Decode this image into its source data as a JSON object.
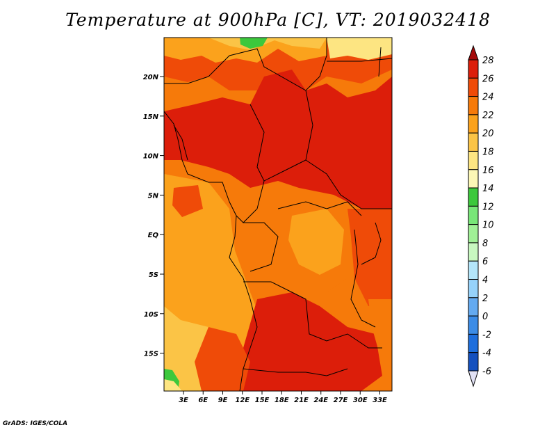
{
  "title": "Temperature at 900hPa [C], VT: 2019032418",
  "credit": "GrADS: IGES/COLA",
  "map": {
    "lat_labels": [
      "20N",
      "15N",
      "10N",
      "5N",
      "EQ",
      "5S",
      "10S",
      "15S"
    ],
    "lat_values": [
      20,
      15,
      10,
      5,
      0,
      -5,
      -10,
      -15
    ],
    "lon_labels": [
      "3E",
      "6E",
      "9E",
      "12E",
      "15E",
      "18E",
      "21E",
      "24E",
      "27E",
      "30E",
      "33E"
    ],
    "lon_values": [
      3,
      6,
      9,
      12,
      15,
      18,
      21,
      24,
      27,
      30,
      33
    ]
  },
  "colorbar": {
    "labels": [
      "28",
      "26",
      "24",
      "22",
      "20",
      "18",
      "16",
      "14",
      "12",
      "10",
      "8",
      "6",
      "4",
      "2",
      "0",
      "-2",
      "-4",
      "-6"
    ],
    "levels": [
      28,
      26,
      24,
      22,
      20,
      18,
      16,
      14,
      12,
      10,
      8,
      6,
      4,
      2,
      0,
      -2,
      -4,
      -6
    ],
    "colors": [
      "#a50a0a",
      "#dc1e0a",
      "#ef4b08",
      "#f67a0a",
      "#fba21c",
      "#fbc446",
      "#fde582",
      "#fcf7b6",
      "#3cc83c",
      "#78e678",
      "#a0f096",
      "#c8f8c0",
      "#b4e6fa",
      "#96d2fa",
      "#64aaf0",
      "#3c8ce6",
      "#1e6edc",
      "#1450be",
      "#0a2896",
      "#000064",
      "#e1e1f5"
    ]
  },
  "colors": {
    "hot": "#dc1e0a",
    "warm": "#ef4b08",
    "mild": "#f67a0a",
    "cool_orange": "#fba21c",
    "yellow": "#fde582",
    "green": "#3cc83c"
  }
}
